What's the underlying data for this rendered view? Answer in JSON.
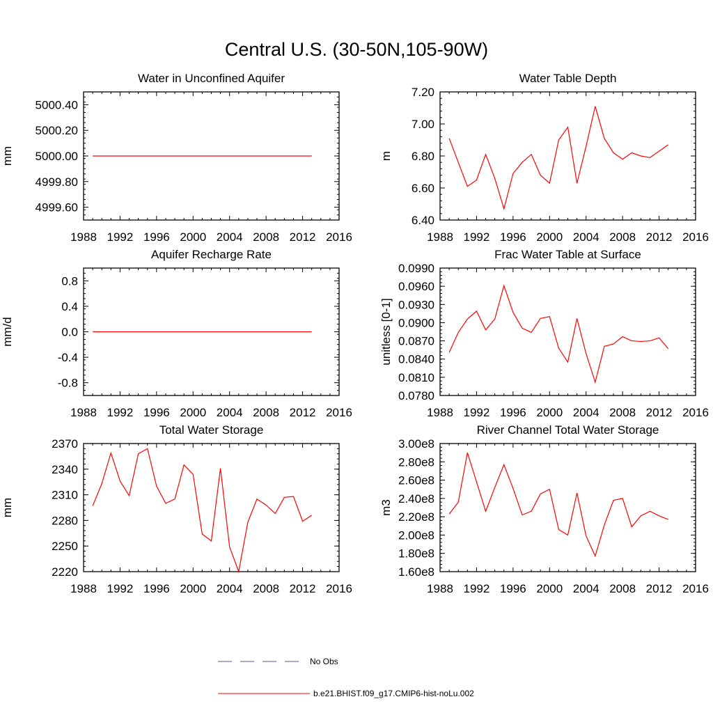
{
  "figure": {
    "title": "Central U.S. (30-50N,105-90W)"
  },
  "colors": {
    "model": "#ff0000",
    "obs": "#4a5aa8",
    "axis": "#000000"
  },
  "legend": {
    "entries": [
      {
        "label": "No Obs",
        "style": "dashed",
        "color": "#4a5aa8"
      },
      {
        "label": "b.e21.BHIST.f09_g17.CMIP6-hist-noLu.002",
        "style": "solid",
        "color": "#ff0000"
      }
    ]
  },
  "chart_data": [
    {
      "type": "line",
      "title": "Water in Unconfined Aquifer",
      "ylabel": "mm",
      "xlim": [
        1988,
        2016
      ],
      "xticks": [
        1988,
        1992,
        1996,
        2000,
        2004,
        2008,
        2012,
        2016
      ],
      "ylim": [
        4999.5,
        5000.5
      ],
      "yticks": [
        4999.6,
        4999.8,
        5000.0,
        5000.2,
        5000.4
      ],
      "ytick_labels": [
        "4999.60",
        "4999.80",
        "5000.00",
        "5000.20",
        "5000.40"
      ],
      "series": [
        {
          "x": [
            1989,
            1990,
            1991,
            1992,
            1993,
            1994,
            1995,
            1996,
            1997,
            1998,
            1999,
            2000,
            2001,
            2002,
            2003,
            2004,
            2005,
            2006,
            2007,
            2008,
            2009,
            2010,
            2011,
            2012,
            2013
          ],
          "values": [
            5000,
            5000,
            5000,
            5000,
            5000,
            5000,
            5000,
            5000,
            5000,
            5000,
            5000,
            5000,
            5000,
            5000,
            5000,
            5000,
            5000,
            5000,
            5000,
            5000,
            5000,
            5000,
            5000,
            5000,
            5000
          ]
        }
      ]
    },
    {
      "type": "line",
      "title": "Water Table Depth",
      "ylabel": "m",
      "xlim": [
        1988,
        2016
      ],
      "xticks": [
        1988,
        1992,
        1996,
        2000,
        2004,
        2008,
        2012,
        2016
      ],
      "ylim": [
        6.4,
        7.2
      ],
      "yticks": [
        6.4,
        6.6,
        6.8,
        7.0,
        7.2
      ],
      "ytick_labels": [
        "6.40",
        "6.60",
        "6.80",
        "7.00",
        "7.20"
      ],
      "series": [
        {
          "x": [
            1989,
            1990,
            1991,
            1992,
            1993,
            1994,
            1995,
            1996,
            1997,
            1998,
            1999,
            2000,
            2001,
            2002,
            2003,
            2004,
            2005,
            2006,
            2007,
            2008,
            2009,
            2010,
            2011,
            2012,
            2013
          ],
          "values": [
            6.91,
            6.76,
            6.61,
            6.65,
            6.81,
            6.66,
            6.47,
            6.69,
            6.76,
            6.81,
            6.68,
            6.63,
            6.9,
            6.98,
            6.63,
            6.86,
            7.11,
            6.91,
            6.82,
            6.78,
            6.82,
            6.8,
            6.79,
            6.83,
            6.87
          ]
        }
      ]
    },
    {
      "type": "line",
      "title": "Aquifer Recharge Rate",
      "ylabel": "mm/d",
      "xlim": [
        1988,
        2016
      ],
      "xticks": [
        1988,
        1992,
        1996,
        2000,
        2004,
        2008,
        2012,
        2016
      ],
      "ylim": [
        -1.0,
        1.0
      ],
      "yticks": [
        -0.8,
        -0.4,
        0.0,
        0.4,
        0.8
      ],
      "ytick_labels": [
        "-0.8",
        "-0.4",
        "0.0",
        "0.4",
        "0.8"
      ],
      "series": [
        {
          "x": [
            1989,
            1990,
            1991,
            1992,
            1993,
            1994,
            1995,
            1996,
            1997,
            1998,
            1999,
            2000,
            2001,
            2002,
            2003,
            2004,
            2005,
            2006,
            2007,
            2008,
            2009,
            2010,
            2011,
            2012,
            2013
          ],
          "values": [
            0,
            0,
            0,
            0,
            0,
            0,
            0,
            0,
            0,
            0,
            0,
            0,
            0,
            0,
            0,
            0,
            0,
            0,
            0,
            0,
            0,
            0,
            0,
            0,
            0
          ]
        }
      ]
    },
    {
      "type": "line",
      "title": "Frac Water Table at Surface",
      "ylabel": "unitless [0-1]",
      "xlim": [
        1988,
        2016
      ],
      "xticks": [
        1988,
        1992,
        1996,
        2000,
        2004,
        2008,
        2012,
        2016
      ],
      "ylim": [
        0.078,
        0.099
      ],
      "yticks": [
        0.078,
        0.081,
        0.084,
        0.087,
        0.09,
        0.093,
        0.096,
        0.099
      ],
      "ytick_labels": [
        "0.0780",
        "0.0810",
        "0.0840",
        "0.0870",
        "0.0900",
        "0.0930",
        "0.0960",
        "0.0990"
      ],
      "series": [
        {
          "x": [
            1989,
            1990,
            1991,
            1992,
            1993,
            1994,
            1995,
            1996,
            1997,
            1998,
            1999,
            2000,
            2001,
            2002,
            2003,
            2004,
            2005,
            2006,
            2007,
            2008,
            2009,
            2010,
            2011,
            2012,
            2013
          ],
          "values": [
            0.0851,
            0.0884,
            0.0906,
            0.0919,
            0.0888,
            0.0906,
            0.0961,
            0.0917,
            0.0891,
            0.0884,
            0.0907,
            0.091,
            0.0858,
            0.0835,
            0.0907,
            0.0849,
            0.0802,
            0.0861,
            0.0865,
            0.0877,
            0.087,
            0.0869,
            0.087,
            0.0875,
            0.0857
          ]
        }
      ]
    },
    {
      "type": "line",
      "title": "Total Water Storage",
      "ylabel": "mm",
      "xlim": [
        1988,
        2016
      ],
      "xticks": [
        1988,
        1992,
        1996,
        2000,
        2004,
        2008,
        2012,
        2016
      ],
      "ylim": [
        2220,
        2370
      ],
      "yticks": [
        2220,
        2250,
        2280,
        2310,
        2340,
        2370
      ],
      "ytick_labels": [
        "2220",
        "2250",
        "2280",
        "2310",
        "2340",
        "2370"
      ],
      "series": [
        {
          "x": [
            1989,
            1990,
            1991,
            1992,
            1993,
            1994,
            1995,
            1996,
            1997,
            1998,
            1999,
            2000,
            2001,
            2002,
            2003,
            2004,
            2005,
            2006,
            2007,
            2008,
            2009,
            2010,
            2011,
            2012,
            2013
          ],
          "values": [
            2297,
            2323,
            2359,
            2326,
            2309,
            2358,
            2364,
            2320,
            2300,
            2305,
            2345,
            2334,
            2264,
            2256,
            2341,
            2249,
            2220,
            2278,
            2305,
            2298,
            2288,
            2307,
            2308,
            2279,
            2286
          ]
        }
      ]
    },
    {
      "type": "line",
      "title": "River Channel Total Water Storage",
      "ylabel": "m3",
      "xlim": [
        1988,
        2016
      ],
      "xticks": [
        1988,
        1992,
        1996,
        2000,
        2004,
        2008,
        2012,
        2016
      ],
      "ylim": [
        160000000,
        300000000
      ],
      "yticks": [
        160000000,
        180000000,
        200000000,
        220000000,
        240000000,
        260000000,
        280000000,
        300000000
      ],
      "ytick_labels": [
        "1.60e8",
        "1.80e8",
        "2.00e8",
        "2.20e8",
        "2.40e8",
        "2.60e8",
        "2.80e8",
        "3.00e8"
      ],
      "series": [
        {
          "x": [
            1989,
            1990,
            1991,
            1992,
            1993,
            1994,
            1995,
            1996,
            1997,
            1998,
            1999,
            2000,
            2001,
            2002,
            2003,
            2004,
            2005,
            2006,
            2007,
            2008,
            2009,
            2010,
            2011,
            2012,
            2013
          ],
          "values": [
            223000000,
            236000000,
            290000000,
            258000000,
            226000000,
            252000000,
            277000000,
            251000000,
            222000000,
            226000000,
            245000000,
            250000000,
            206000000,
            200000000,
            246000000,
            199000000,
            177000000,
            211000000,
            238000000,
            240000000,
            209000000,
            221000000,
            226000000,
            221000000,
            217000000
          ]
        }
      ]
    }
  ]
}
